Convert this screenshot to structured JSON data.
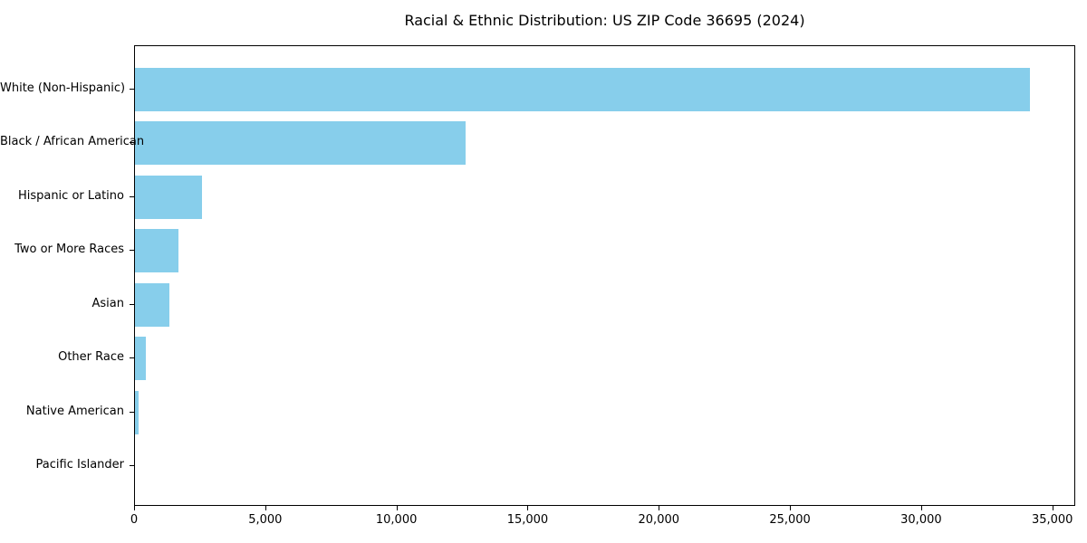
{
  "chart_data": {
    "type": "bar",
    "orientation": "horizontal",
    "title": "Racial & Ethnic Distribution: US ZIP Code 36695 (2024)",
    "categories": [
      "White (Non-Hispanic)",
      "Black / African American",
      "Hispanic or Latino",
      "Two or More Races",
      "Asian",
      "Other Race",
      "Native American",
      "Pacific Islander"
    ],
    "values": [
      34100,
      12600,
      2550,
      1650,
      1300,
      400,
      150,
      0
    ],
    "xlabel": "",
    "ylabel": "",
    "xlim": [
      0,
      35873
    ],
    "x_ticks": [
      0,
      5000,
      10000,
      15000,
      20000,
      25000,
      30000,
      35000
    ],
    "x_tick_labels": [
      "0",
      "5,000",
      "10,000",
      "15,000",
      "20,000",
      "25,000",
      "30,000",
      "35,000"
    ],
    "bar_color": "#87CEEB",
    "axis_color": "#000000",
    "background_color": "#FFFFFF",
    "grid": false,
    "legend": false
  }
}
